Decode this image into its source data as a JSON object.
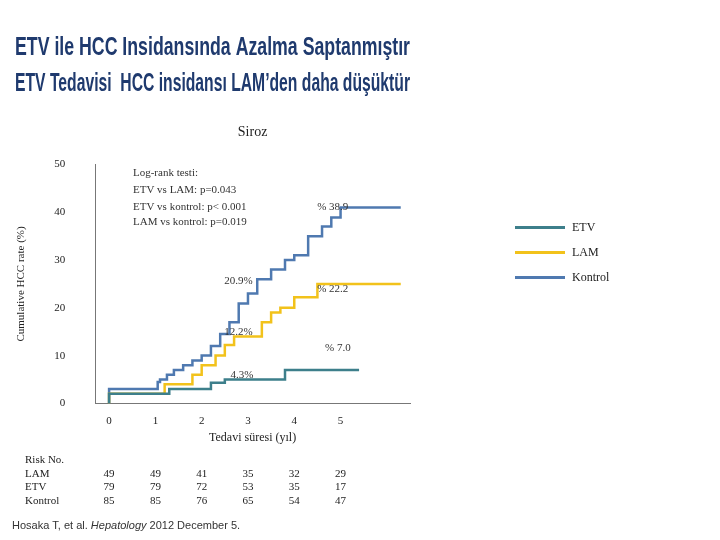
{
  "chart_data": {
    "type": "step",
    "title": [
      "ETV ile HCC Insidansında Azalma Saptanmıştır",
      "ETV Tedavisi  HCC insidansı LAM’den daha düşüktür"
    ],
    "subtitle": "Siroz",
    "x_label": "Tedavi süresi (yıl)",
    "y_label": "Cumulative HCC rate (%)",
    "xlim": [
      -0.3,
      6.5
    ],
    "xticks": [
      0,
      1,
      2,
      3,
      4,
      5
    ],
    "ylim": [
      0,
      50
    ],
    "yticks": [
      0,
      10,
      20,
      30,
      40,
      50
    ],
    "grid": false,
    "legend": "right",
    "series": [
      {
        "name": "ETV",
        "color": "#3d7f8b",
        "x": [
          0,
          1.3,
          2.2,
          2.5,
          3.8,
          4.0,
          5.4
        ],
        "values": [
          0,
          2,
          3,
          4.3,
          5,
          7,
          7
        ]
      },
      {
        "name": "LAM",
        "color": "#f2c21b",
        "x": [
          0,
          1.2,
          1.8,
          2.0,
          2.3,
          2.5,
          2.7,
          3.3,
          3.5,
          3.7,
          4.0,
          4.5,
          5.2,
          6.3
        ],
        "values": [
          0,
          2,
          4,
          6,
          8,
          10,
          12.2,
          14,
          17,
          19,
          20,
          22.2,
          25,
          25
        ]
      },
      {
        "name": "Kontrol",
        "color": "#4f79b0",
        "x": [
          0,
          1.05,
          1.1,
          1.25,
          1.4,
          1.6,
          1.8,
          2.0,
          2.2,
          2.4,
          2.6,
          2.8,
          3.0,
          3.2,
          3.5,
          3.8,
          4.0,
          4.3,
          4.6,
          4.8,
          5.0,
          5.5,
          6.3
        ],
        "values": [
          0,
          3,
          4.5,
          5,
          6,
          7,
          8,
          9,
          10,
          12,
          14.5,
          17,
          20.9,
          23,
          26,
          28,
          30,
          31,
          35,
          37,
          38.9,
          41,
          41
        ]
      }
    ],
    "annotations": [
      "Log-rank testi:",
      "ETV vs LAM: p=0.043",
      "ETV vs kontrol: p< 0.001",
      "LAM vs kontrol: p=0.019",
      "% 38.9",
      "20.9%",
      "% 22.2",
      "12.2%",
      "% 7.0",
      "4.3%"
    ],
    "risk_table": {
      "title": "Risk No.",
      "rows": [
        {
          "name": "LAM",
          "values": [
            49,
            49,
            41,
            35,
            32,
            29
          ]
        },
        {
          "name": "ETV",
          "values": [
            79,
            79,
            72,
            53,
            35,
            17
          ]
        },
        {
          "name": "Kontrol",
          "values": [
            85,
            85,
            76,
            65,
            54,
            47
          ]
        }
      ]
    },
    "citation": {
      "authors": "Hosaka T, et al.",
      "journal": "Hepatology",
      "details": "2012 December 5."
    }
  }
}
